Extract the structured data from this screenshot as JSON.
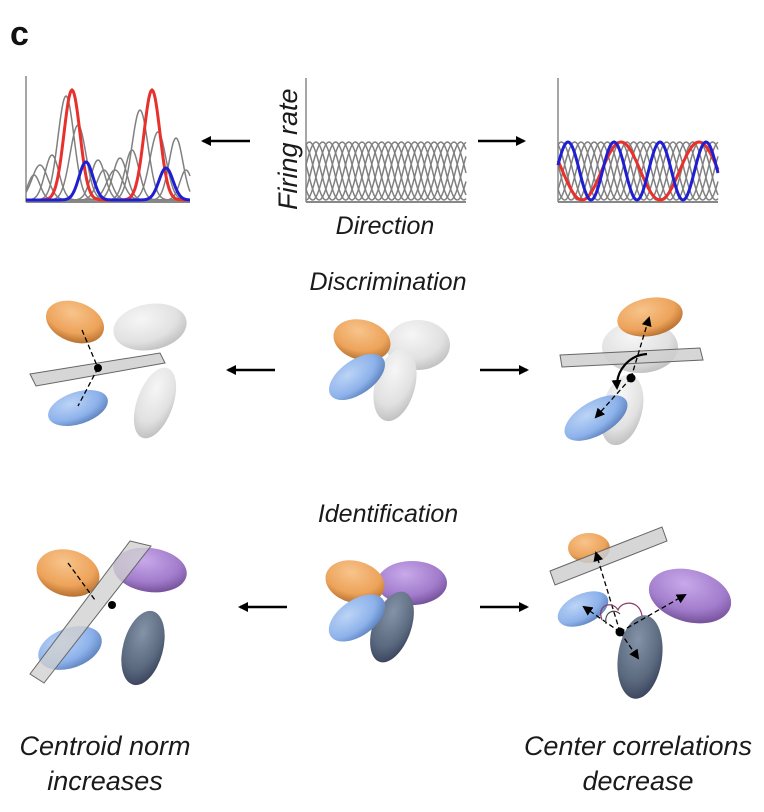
{
  "panel_letter": "c",
  "tuning": {
    "y_axis_label": "Firing rate",
    "x_axis_label": "Direction",
    "curve_colors": {
      "background": "#808080",
      "highlight_a": "#e8302c",
      "highlight_b": "#1f1fd1"
    }
  },
  "rows": {
    "discrimination": {
      "title": "Discrimination"
    },
    "identification": {
      "title": "Identification"
    }
  },
  "captions": {
    "left": [
      "Centroid norm",
      "increases"
    ],
    "right": [
      "Center correlations",
      "decrease"
    ]
  },
  "colors": {
    "orange": "#f0a55e",
    "light_blue": "#8fb4ea",
    "purple": "#a47fcf",
    "slate": "#5d6b82",
    "grey_ellipse": "#e2e2e2",
    "plane": "#cfcfcf"
  }
}
